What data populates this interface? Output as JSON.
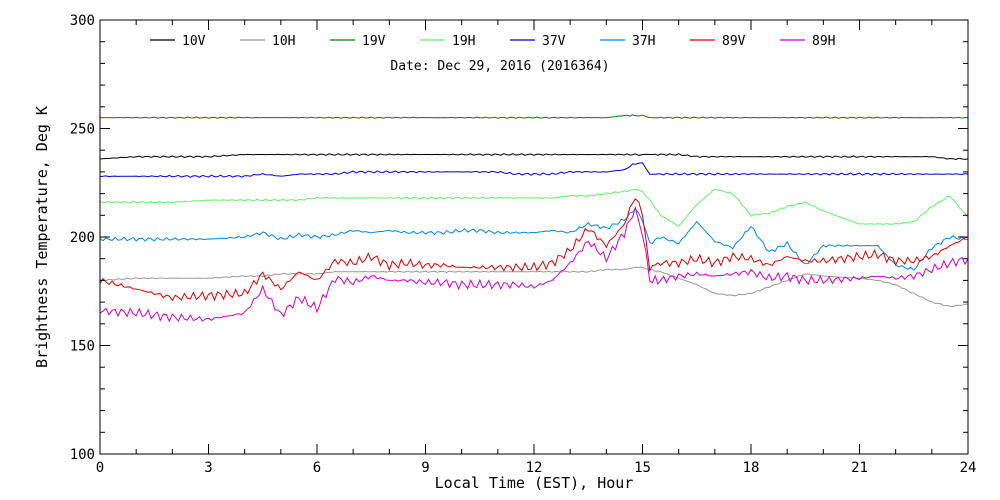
{
  "chart_data": {
    "type": "line",
    "annotation": "Date: Dec 29, 2016 (2016364)",
    "xlabel": "Local Time (EST), Hour",
    "ylabel": "Brightness Temperature, Deg K",
    "xlim": [
      0,
      24
    ],
    "ylim": [
      100,
      300
    ],
    "x_ticks": [
      0,
      3,
      6,
      9,
      12,
      15,
      18,
      21,
      24
    ],
    "y_ticks": [
      100,
      150,
      200,
      250,
      300
    ],
    "x_tick_labels": [
      "0",
      "3",
      "6",
      "9",
      "12",
      "15",
      "18",
      "21",
      "24"
    ],
    "y_tick_labels": [
      "100",
      "150",
      "200",
      "250",
      "300"
    ],
    "grid": false,
    "legend_position": "top",
    "x": [
      0,
      1,
      2,
      3,
      4,
      4.5,
      5,
      5.5,
      6,
      6.5,
      7,
      7.5,
      8,
      8.5,
      9,
      9.5,
      10,
      10.5,
      11,
      11.5,
      12,
      12.5,
      13,
      13.5,
      14,
      14.5,
      14.8,
      15,
      15.2,
      15.5,
      16,
      16.5,
      17,
      17.5,
      18,
      18.5,
      19,
      19.5,
      20,
      21,
      21.5,
      22,
      22.5,
      23,
      23.5,
      24
    ],
    "series": [
      {
        "name": "10V",
        "color": "#000000",
        "values": [
          236,
          237,
          237,
          237,
          238,
          238,
          238,
          238,
          238,
          238,
          238,
          238,
          238,
          238,
          238,
          238,
          238,
          238,
          238,
          238,
          238,
          238,
          238,
          238,
          238,
          238,
          238,
          238,
          238,
          238,
          238,
          237,
          237,
          237,
          237,
          237,
          237,
          237,
          237,
          237,
          237,
          237,
          237,
          237,
          236,
          236
        ]
      },
      {
        "name": "10H",
        "color": "#999999",
        "values": [
          180,
          181,
          181,
          181,
          182,
          182,
          183,
          183,
          183,
          184,
          184,
          184,
          184,
          184,
          184,
          184,
          184,
          184,
          184,
          184,
          184,
          184,
          184,
          184,
          185,
          185,
          186,
          186,
          185,
          184,
          181,
          178,
          174,
          173,
          174,
          177,
          180,
          183,
          182,
          181,
          180,
          178,
          174,
          170,
          168,
          169
        ]
      },
      {
        "name": "19V",
        "color": "#008000",
        "values": [
          255,
          255,
          255,
          255,
          255,
          255,
          255,
          255,
          255,
          255,
          255,
          255,
          255,
          255,
          255,
          255,
          255,
          255,
          255,
          255,
          255,
          255,
          255,
          255,
          255,
          256,
          256,
          256,
          255,
          255,
          255,
          255,
          255,
          255,
          255,
          255,
          255,
          255,
          255,
          255,
          255,
          255,
          255,
          255,
          255,
          255
        ]
      },
      {
        "name": "19H",
        "color": "#66ee66",
        "values": [
          216,
          216,
          216,
          217,
          217,
          217,
          217,
          217,
          218,
          218,
          218,
          218,
          218,
          218,
          218,
          218,
          218,
          218,
          218,
          218,
          218,
          218,
          219,
          219,
          220,
          221,
          222,
          221,
          217,
          210,
          205,
          215,
          222,
          220,
          210,
          211,
          214,
          216,
          212,
          206,
          206,
          206,
          207,
          214,
          219,
          209
        ]
      },
      {
        "name": "37V",
        "color": "#0000cc",
        "values": [
          228,
          228,
          228,
          228,
          228,
          229,
          228,
          229,
          229,
          229,
          230,
          230,
          230,
          230,
          230,
          230,
          230,
          230,
          230,
          229,
          229,
          229,
          230,
          230,
          230,
          231,
          234,
          234,
          229,
          229,
          229,
          229,
          229,
          229,
          229,
          229,
          229,
          229,
          229,
          229,
          229,
          229,
          229,
          229,
          229,
          229
        ]
      },
      {
        "name": "37H",
        "color": "#0088dd",
        "values": [
          199,
          199,
          199,
          199,
          200,
          202,
          199,
          201,
          200,
          201,
          203,
          202,
          203,
          202,
          202,
          202,
          203,
          203,
          202,
          202,
          202,
          203,
          202,
          206,
          204,
          208,
          213,
          208,
          197,
          200,
          197,
          207,
          198,
          195,
          205,
          193,
          197,
          187,
          196,
          196,
          196,
          187,
          185,
          195,
          200,
          199
        ]
      },
      {
        "name": "89V",
        "color": "#dd0000",
        "values": [
          180,
          176,
          172,
          173,
          174,
          183,
          176,
          184,
          180,
          189,
          188,
          191,
          187,
          188,
          187,
          187,
          186,
          186,
          186,
          186,
          186,
          188,
          194,
          204,
          196,
          206,
          219,
          210,
          186,
          188,
          188,
          190,
          188,
          191,
          190,
          187,
          191,
          189,
          189,
          191,
          192,
          189,
          189,
          191,
          196,
          200
        ]
      },
      {
        "name": "89H",
        "color": "#cc00cc",
        "values": [
          166,
          165,
          163,
          162,
          165,
          176,
          164,
          172,
          167,
          181,
          179,
          182,
          180,
          180,
          179,
          179,
          178,
          178,
          178,
          178,
          177,
          180,
          188,
          198,
          190,
          202,
          213,
          202,
          180,
          180,
          182,
          183,
          182,
          183,
          184,
          181,
          182,
          180,
          180,
          181,
          182,
          181,
          182,
          185,
          188,
          190
        ]
      }
    ]
  }
}
